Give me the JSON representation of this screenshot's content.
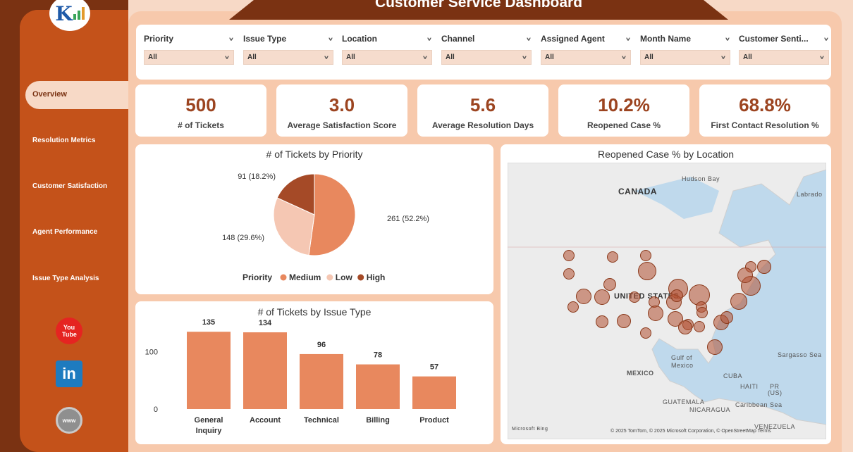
{
  "header": {
    "title": "Customer Service Dashboard"
  },
  "sidebar": {
    "active": "Overview",
    "items": [
      {
        "label": "Overview"
      },
      {
        "label": "Resolution Metrics"
      },
      {
        "label": "Customer Satisfaction"
      },
      {
        "label": "Agent Performance"
      },
      {
        "label": "Issue Type Analysis"
      }
    ],
    "social": {
      "youtube": "You Tube",
      "linkedin": "in",
      "web": "www"
    }
  },
  "filters": [
    {
      "label": "Priority",
      "value": "All"
    },
    {
      "label": "Issue Type",
      "value": "All"
    },
    {
      "label": "Location",
      "value": "All"
    },
    {
      "label": "Channel",
      "value": "All"
    },
    {
      "label": "Assigned Agent",
      "value": "All"
    },
    {
      "label": "Month Name",
      "value": "All"
    },
    {
      "label": "Customer Senti...",
      "value": "All"
    }
  ],
  "kpis": [
    {
      "value": "500",
      "label": "# of Tickets"
    },
    {
      "value": "3.0",
      "label": "Average Satisfaction Score"
    },
    {
      "value": "5.6",
      "label": "Average Resolution Days"
    },
    {
      "value": "10.2%",
      "label": "Reopened Case %"
    },
    {
      "value": "68.8%",
      "label": "First Contact Resolution %"
    }
  ],
  "colors": {
    "accent": "#9c4420",
    "medium": "#e8885e",
    "low": "#f5c7b3",
    "high": "#a54a27",
    "bar": "#e8885e"
  },
  "chart_data": [
    {
      "type": "pie",
      "title": "# of Tickets by Priority",
      "legend_title": "Priority",
      "slices": [
        {
          "name": "Medium",
          "value": 261,
          "label": "261 (52.2%)"
        },
        {
          "name": "Low",
          "value": 148,
          "label": "148 (29.6%)"
        },
        {
          "name": "High",
          "value": 91,
          "label": "91 (18.2%)"
        }
      ]
    },
    {
      "type": "bar",
      "title": "# of Tickets by Issue Type",
      "categories": [
        "General Inquiry",
        "Account",
        "Technical",
        "Billing",
        "Product"
      ],
      "values": [
        135,
        134,
        96,
        78,
        57
      ],
      "yticks": [
        "100",
        "0"
      ]
    }
  ],
  "map": {
    "title": "Reopened Case % by Location",
    "labels": [
      "CANADA",
      "Hudson Bay",
      "Labrado",
      "UNITED STATES",
      "Gulf of Mexico",
      "Sargasso Sea",
      "MEXICO",
      "CUBA",
      "HAITI",
      "PR",
      "(US)",
      "GUATEMALA",
      "NICARAGUA",
      "Caribbean Sea",
      "VENEZUELA"
    ],
    "attribution": "© 2025 TomTom, © 2025 Microsoft Corporation, © OpenStreetMap Terms",
    "brand": "Microsoft Bing"
  }
}
